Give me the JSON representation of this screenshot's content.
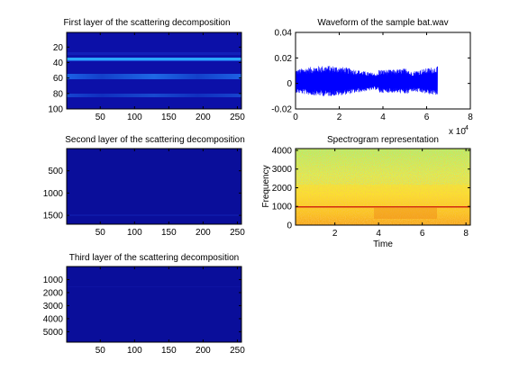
{
  "chart_data": [
    {
      "type": "heatmap",
      "title": "First layer of the scattering decomposition",
      "xlim": [
        1,
        256
      ],
      "ylim": [
        1,
        100
      ],
      "xticks": [
        50,
        100,
        150,
        200,
        250
      ],
      "yticks": [
        20,
        40,
        60,
        80,
        100
      ],
      "colormap": "jet",
      "base_color": "#0c10a8",
      "bands": [
        {
          "y": 37,
          "intensity": 0.9,
          "color": "#2ca7ff"
        },
        {
          "y": 59,
          "intensity": 0.6,
          "color": "#1f5fe0"
        },
        {
          "y": 88,
          "intensity": 0.4,
          "color": "#1a3fd0"
        }
      ]
    },
    {
      "type": "heatmap",
      "title": "Second layer of the scattering decomposition",
      "xlim": [
        1,
        256
      ],
      "ylim": [
        1,
        1700
      ],
      "xticks": [
        50,
        100,
        150,
        200,
        250
      ],
      "yticks": [
        500,
        1000,
        1500
      ],
      "colormap": "jet",
      "base_color": "#0a0e9a"
    },
    {
      "type": "heatmap",
      "title": "Third layer of the scattering decomposition",
      "xlim": [
        1,
        256
      ],
      "ylim": [
        1,
        5800
      ],
      "xticks": [
        50,
        100,
        150,
        200,
        250
      ],
      "yticks": [
        1000,
        2000,
        3000,
        4000,
        5000
      ],
      "colormap": "jet",
      "base_color": "#0a0e9a"
    },
    {
      "type": "line",
      "title": "Waveform of the sample bat.wav",
      "xlim": [
        0,
        80000
      ],
      "ylim": [
        -0.02,
        0.04
      ],
      "xticks": [
        0,
        2,
        4,
        6,
        8
      ],
      "yticks": [
        -0.02,
        0,
        0.02,
        0.04
      ],
      "x_multiplier_label": "x 10",
      "x_multiplier_exp": "4",
      "series_color": "#0000ff",
      "signal_end": 65000,
      "amplitude_approx": 0.013
    },
    {
      "type": "heatmap",
      "title": "Spectrogram representation",
      "xlabel": "Time",
      "ylabel": "Frequency",
      "xlim": [
        0.2,
        8.2
      ],
      "ylim": [
        0,
        4096
      ],
      "xticks": [
        2,
        4,
        6,
        8
      ],
      "yticks": [
        0,
        1000,
        2000,
        3000,
        4000
      ],
      "colormap": "jet",
      "highlight_line_y": 850
    }
  ]
}
